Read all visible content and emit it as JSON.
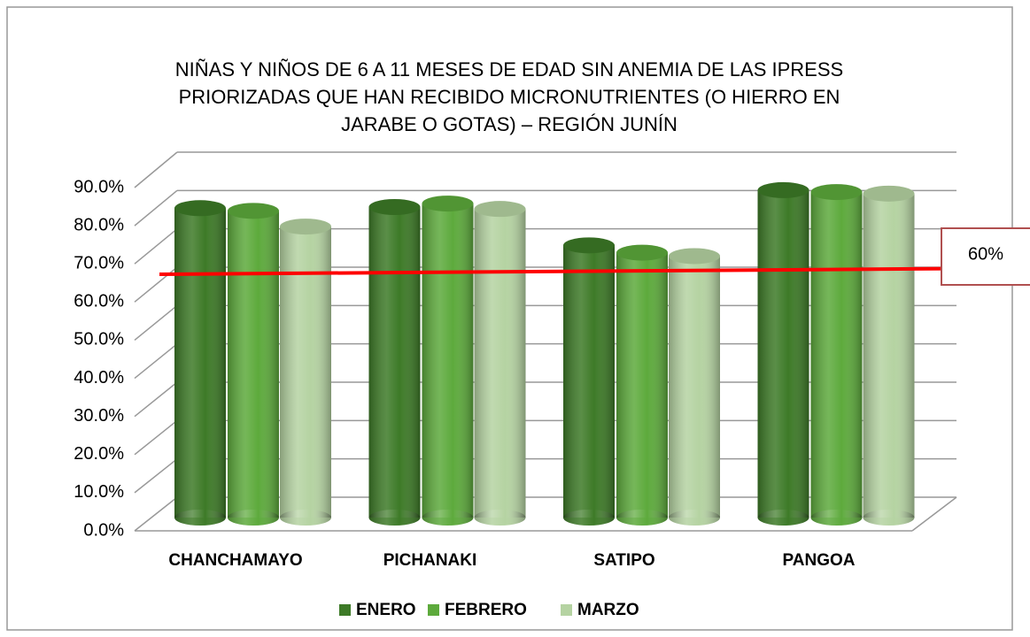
{
  "chart_data": {
    "type": "bar3d",
    "title": [
      "NIÑAS Y NIÑOS DE 6 A 11 MESES DE EDAD SIN ANEMIA DE LAS IPRESS",
      "PRIORIZADAS QUE HAN RECIBIDO MICRONUTRIENTES (O HIERRO EN",
      "JARABE O GOTAS) – REGIÓN JUNÍN"
    ],
    "categories": [
      "CHANCHAMAYO",
      "PICHANAKI",
      "SATIPO",
      "PANGOA"
    ],
    "series": [
      {
        "name": "ENERO",
        "color": "#3d7a27",
        "values": [
          80.7,
          81.0,
          71.0,
          85.4
        ]
      },
      {
        "name": "FEBRERO",
        "color": "#5daa3c",
        "values": [
          80.0,
          81.9,
          69.1,
          84.9
        ]
      },
      {
        "name": "MARZO",
        "color": "#b5d3a2",
        "values": [
          75.9,
          80.5,
          68.2,
          84.5
        ]
      }
    ],
    "ylim": [
      0,
      90
    ],
    "yticks": [
      {
        "value": 0,
        "label": "0.0%"
      },
      {
        "value": 10,
        "label": "10.0%"
      },
      {
        "value": 20,
        "label": "20.0%"
      },
      {
        "value": 30,
        "label": "30.0%"
      },
      {
        "value": 40,
        "label": "40.0%"
      },
      {
        "value": 50,
        "label": "50.0%"
      },
      {
        "value": 60,
        "label": "60.0%"
      },
      {
        "value": 70,
        "label": "70.0%"
      },
      {
        "value": 80,
        "label": "80.0%"
      },
      {
        "value": 90,
        "label": "90.0%"
      }
    ],
    "grid": true,
    "legend": "bottom",
    "annotation": "60%"
  }
}
